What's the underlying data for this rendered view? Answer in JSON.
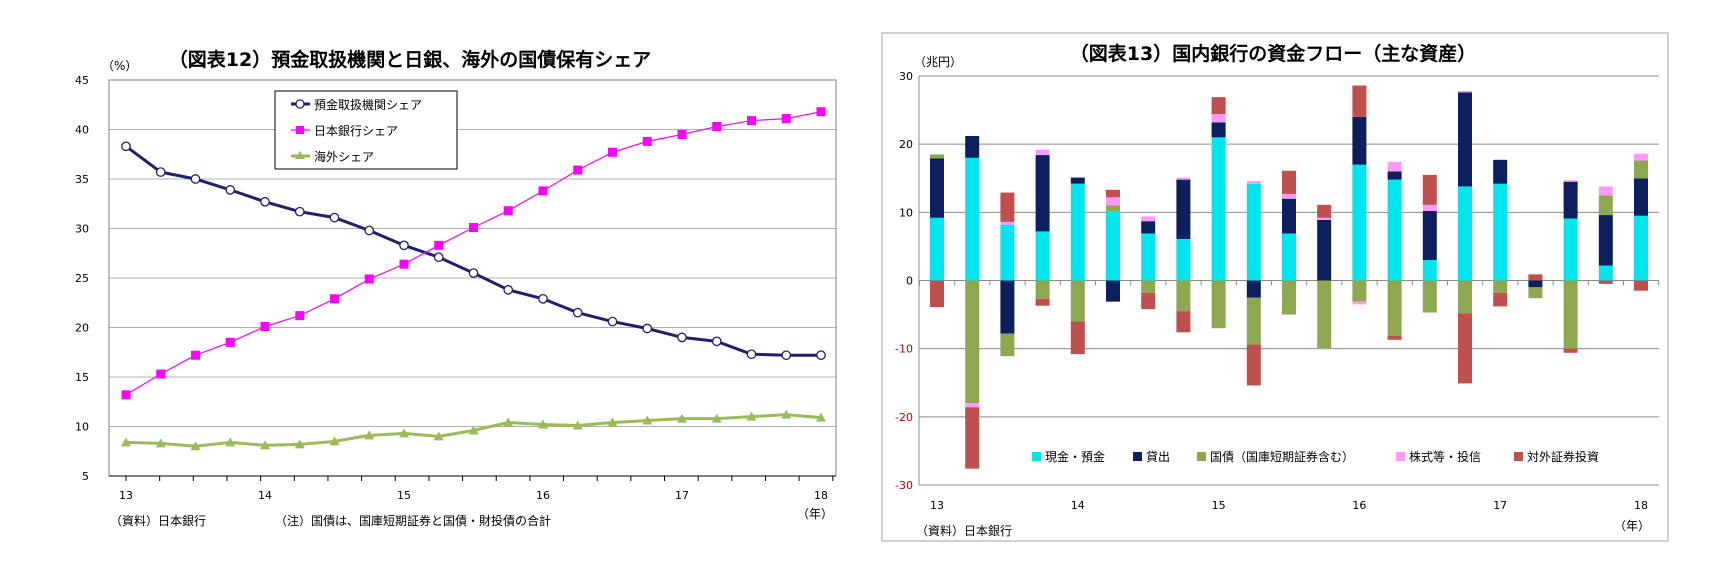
{
  "chart_data": [
    {
      "type": "line",
      "title": "（図表12）預金取扱機関と日銀、海外の国債保有シェア",
      "ylabel": "（%）",
      "xlabel": "（年）",
      "ylim": [
        5,
        45
      ],
      "yticks": [
        5,
        10,
        15,
        20,
        25,
        30,
        35,
        40,
        45
      ],
      "xtick_labels": [
        "13",
        "14",
        "15",
        "16",
        "17",
        "18"
      ],
      "grid": true,
      "legend_placement": "top-left inside",
      "x": [
        13.0,
        13.25,
        13.5,
        13.75,
        14.0,
        14.25,
        14.5,
        14.75,
        15.0,
        15.25,
        15.5,
        15.75,
        16.0,
        16.25,
        16.5,
        16.75,
        17.0,
        17.25,
        17.5,
        17.75,
        18.0
      ],
      "series": [
        {
          "name": "預金取扱機関シェア",
          "color": "#1f1f6e",
          "marker": "circle-open",
          "values": [
            38.3,
            35.7,
            35.0,
            33.9,
            32.7,
            31.7,
            31.1,
            29.8,
            28.3,
            27.1,
            25.5,
            23.8,
            22.9,
            21.5,
            20.6,
            19.9,
            19.0,
            18.6,
            17.3,
            17.2,
            17.2
          ]
        },
        {
          "name": "日本銀行シェア",
          "color": "#ff00ff",
          "marker": "square",
          "values": [
            13.2,
            15.3,
            17.2,
            18.5,
            20.1,
            21.2,
            22.9,
            24.9,
            26.4,
            28.3,
            30.1,
            31.8,
            33.8,
            35.9,
            37.7,
            38.8,
            39.5,
            40.3,
            40.9,
            41.1,
            41.8
          ]
        },
        {
          "name": "海外シェア",
          "color": "#9bbb59",
          "marker": "triangle",
          "values": [
            8.4,
            8.3,
            8.0,
            8.4,
            8.1,
            8.2,
            8.5,
            9.1,
            9.3,
            9.0,
            9.6,
            10.4,
            10.2,
            10.1,
            10.4,
            10.6,
            10.8,
            10.8,
            11.0,
            11.2,
            10.9
          ]
        }
      ],
      "source": "（資料）日本銀行",
      "note": "（注）国債は、国庫短期証券と国債・財投債の合計"
    },
    {
      "type": "bar",
      "stacked": true,
      "title": "（図表13）国内銀行の資金フロー（主な資産）",
      "ylabel": "（兆円）",
      "xlabel": "（年）",
      "ylim": [
        -30,
        30
      ],
      "yticks": [
        -30,
        -20,
        -10,
        0,
        10,
        20,
        30
      ],
      "negative_tick_color": "#c00000",
      "xtick_labels": [
        "13",
        "14",
        "15",
        "16",
        "17",
        "18"
      ],
      "grid": true,
      "legend_placement": "bottom inside",
      "x": [
        13.0,
        13.25,
        13.5,
        13.75,
        14.0,
        14.25,
        14.5,
        14.75,
        15.0,
        15.25,
        15.5,
        15.75,
        16.0,
        16.25,
        16.5,
        16.75,
        17.0,
        17.25,
        17.5,
        17.75,
        18.0
      ],
      "series": [
        {
          "name": "現金・預金",
          "color": "#00e5ee",
          "values": [
            9.2,
            18.0,
            8.2,
            7.2,
            14.2,
            10.2,
            6.9,
            6.1,
            21.0,
            14.2,
            6.9,
            0,
            17.0,
            14.8,
            3.0,
            13.8,
            14.2,
            0,
            9.1,
            2.2,
            9.5
          ]
        },
        {
          "name": "貸出",
          "color": "#0c1f5e",
          "values": [
            8.7,
            3.2,
            -7.8,
            11.2,
            0.9,
            -3.1,
            1.8,
            8.7,
            2.2,
            -2.5,
            5.1,
            8.9,
            7.0,
            1.2,
            7.2,
            13.8,
            3.5,
            -1.0,
            5.4,
            7.4,
            5.5
          ]
        },
        {
          "name": "国債（国庫短期証券含む）",
          "color": "#8ea850",
          "values": [
            0.6,
            -18.0,
            -3.3,
            -2.7,
            -6.0,
            0.8,
            -1.8,
            -4.5,
            -7.0,
            -6.9,
            -5.0,
            -9.9,
            -3.1,
            -8.1,
            -4.7,
            -4.8,
            -1.8,
            -1.6,
            -10.0,
            2.9,
            2.6
          ]
        },
        {
          "name": "株式等・投信",
          "color": "#ff99ff",
          "values": [
            0,
            -0.6,
            0.4,
            0.8,
            0,
            1.2,
            0.7,
            0.3,
            1.2,
            0.4,
            0.7,
            0.3,
            -0.4,
            1.4,
            0.9,
            0.2,
            0,
            0,
            0.2,
            1.3,
            1.0
          ]
        },
        {
          "name": "対外証券投資",
          "color": "#c0504d",
          "values": [
            -3.9,
            -9.0,
            4.3,
            -1.0,
            -4.8,
            1.1,
            -2.4,
            -3.1,
            2.5,
            -6.0,
            3.4,
            1.9,
            4.6,
            -0.6,
            4.4,
            -10.3,
            -2.0,
            0.9,
            -0.6,
            -0.5,
            -1.5
          ]
        }
      ],
      "source": "（資料）日本銀行"
    }
  ]
}
